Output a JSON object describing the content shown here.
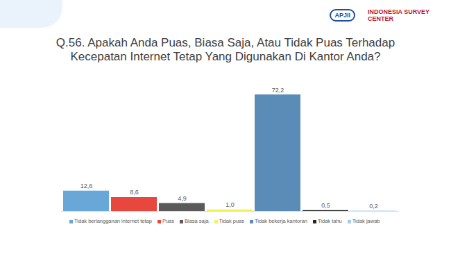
{
  "chart_data": {
    "type": "bar",
    "title": "Q.56. Apakah Anda Puas, Biasa Saja, Atau Tidak Puas Terhadap\nKecepatan Internet Tetap Yang Digunakan Di Kantor Anda?",
    "annotations": [
      "APJII",
      "INDONESIA SURVEY CENTER"
    ],
    "categories": [
      "Tidak berlangganan internet tetap",
      "Puas",
      "Biasa saja",
      "Tidak puas",
      "Tidak bekerja kantoran",
      "Tidak tahu",
      "Tidak jawab"
    ],
    "values": [
      12.6,
      8.6,
      4.9,
      1.0,
      72.2,
      0.5,
      0.2
    ],
    "value_labels": [
      "12,6",
      "8,6",
      "4,9",
      "1,0",
      "72,2",
      "0,5",
      "0,2"
    ],
    "colors": [
      "#6aa7d9",
      "#e8473d",
      "#5a5a5a",
      "#f2f25a",
      "#5b8cb8",
      "#262626",
      "#a9cbe8"
    ],
    "ylim": [
      0,
      80
    ],
    "yticks": [],
    "data_labels": true,
    "tick_labels": false,
    "legend": "bottom"
  }
}
